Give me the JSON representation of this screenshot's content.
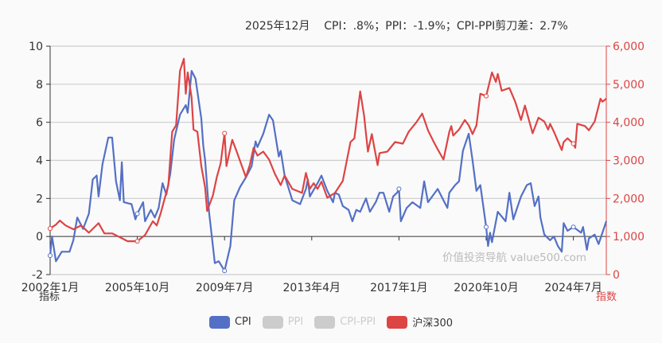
{
  "summary": {
    "text": "2025年12月    CPI：.8%；PPI：-1.9%；CPI-PPI剪刀差：2.7%"
  },
  "watermark": "价值投资导航 value500.com",
  "colors": {
    "cpi": "#5470c6",
    "hs300": "#dd4444",
    "inactive": "#cccccc",
    "grid": "#cccccc"
  },
  "chart_data": {
    "type": "line",
    "x_start": "2002-01",
    "x_end": "2025-12",
    "x_ticks": [
      "2002年1月",
      "2005年10月",
      "2009年7月",
      "2013年4月",
      "2017年1月",
      "2020年10月",
      "2024年7月"
    ],
    "x_tick_dates": [
      "2002-01",
      "2005-10",
      "2009-07",
      "2013-04",
      "2017-01",
      "2020-10",
      "2024-07"
    ],
    "y_left": {
      "name": "指标",
      "min": -2,
      "max": 10,
      "ticks": [
        "-2",
        "0",
        "2",
        "4",
        "6",
        "8",
        "10"
      ]
    },
    "y_right": {
      "name": "指数",
      "min": 0,
      "max": 6000,
      "ticks": [
        "0",
        "1,000",
        "2,000",
        "3,000",
        "4,000",
        "5,000",
        "6,000"
      ]
    },
    "legend": [
      {
        "name": "CPI",
        "active": true,
        "color": "#5470c6"
      },
      {
        "name": "PPI",
        "active": false
      },
      {
        "name": "CPI-PPI",
        "active": false
      },
      {
        "name": "沪深300",
        "active": true,
        "color": "#dd4444"
      }
    ],
    "series": [
      {
        "name": "CPI",
        "axis": "left",
        "points": [
          [
            "2002-01",
            -1.0
          ],
          [
            "2002-02",
            0
          ],
          [
            "2002-04",
            -1.3
          ],
          [
            "2002-07",
            -0.8
          ],
          [
            "2002-11",
            -0.8
          ],
          [
            "2003-01",
            -0.2
          ],
          [
            "2003-03",
            1.0
          ],
          [
            "2003-06",
            0.4
          ],
          [
            "2003-09",
            1.2
          ],
          [
            "2003-11",
            3.0
          ],
          [
            "2004-01",
            3.2
          ],
          [
            "2004-02",
            2.1
          ],
          [
            "2004-04",
            3.8
          ],
          [
            "2004-07",
            5.2
          ],
          [
            "2004-09",
            5.2
          ],
          [
            "2004-11",
            2.9
          ],
          [
            "2005-01",
            1.9
          ],
          [
            "2005-02",
            3.9
          ],
          [
            "2005-03",
            1.8
          ],
          [
            "2005-07",
            1.7
          ],
          [
            "2005-09",
            0.9
          ],
          [
            "2005-10",
            1.2
          ],
          [
            "2006-01",
            1.8
          ],
          [
            "2006-02",
            0.8
          ],
          [
            "2006-05",
            1.4
          ],
          [
            "2006-07",
            1.0
          ],
          [
            "2006-09",
            1.5
          ],
          [
            "2006-11",
            2.8
          ],
          [
            "2007-01",
            2.2
          ],
          [
            "2007-03",
            3.3
          ],
          [
            "2007-05",
            5.1
          ],
          [
            "2007-08",
            6.4
          ],
          [
            "2007-11",
            6.9
          ],
          [
            "2007-12",
            6.5
          ],
          [
            "2008-02",
            8.7
          ],
          [
            "2008-04",
            8.3
          ],
          [
            "2008-07",
            6.2
          ],
          [
            "2008-08",
            4.8
          ],
          [
            "2008-09",
            4.0
          ],
          [
            "2008-11",
            1.3
          ],
          [
            "2009-02",
            -1.4
          ],
          [
            "2009-04",
            -1.3
          ],
          [
            "2009-07",
            -1.8
          ],
          [
            "2009-10",
            -0.5
          ],
          [
            "2009-12",
            1.9
          ],
          [
            "2010-03",
            2.6
          ],
          [
            "2010-06",
            3.1
          ],
          [
            "2010-09",
            3.7
          ],
          [
            "2010-11",
            5.0
          ],
          [
            "2010-12",
            4.7
          ],
          [
            "2011-03",
            5.4
          ],
          [
            "2011-06",
            6.4
          ],
          [
            "2011-08",
            6.1
          ],
          [
            "2011-11",
            4.2
          ],
          [
            "2011-12",
            4.5
          ],
          [
            "2012-02",
            3.2
          ],
          [
            "2012-06",
            1.9
          ],
          [
            "2012-10",
            1.7
          ],
          [
            "2013-01",
            2.5
          ],
          [
            "2013-02",
            3.0
          ],
          [
            "2013-03",
            2.1
          ],
          [
            "2013-07",
            2.8
          ],
          [
            "2013-09",
            3.2
          ],
          [
            "2013-12",
            2.4
          ],
          [
            "2014-03",
            1.8
          ],
          [
            "2014-04",
            2.3
          ],
          [
            "2014-06",
            2.2
          ],
          [
            "2014-08",
            1.6
          ],
          [
            "2014-11",
            1.4
          ],
          [
            "2015-01",
            0.8
          ],
          [
            "2015-03",
            1.4
          ],
          [
            "2015-05",
            1.3
          ],
          [
            "2015-08",
            2.0
          ],
          [
            "2015-10",
            1.3
          ],
          [
            "2016-01",
            1.8
          ],
          [
            "2016-03",
            2.3
          ],
          [
            "2016-05",
            2.3
          ],
          [
            "2016-08",
            1.3
          ],
          [
            "2016-10",
            2.1
          ],
          [
            "2016-12",
            2.3
          ],
          [
            "2017-01",
            2.5
          ],
          [
            "2017-02",
            0.8
          ],
          [
            "2017-05",
            1.5
          ],
          [
            "2017-08",
            1.8
          ],
          [
            "2017-12",
            1.5
          ],
          [
            "2018-02",
            2.9
          ],
          [
            "2018-04",
            1.8
          ],
          [
            "2018-09",
            2.5
          ],
          [
            "2019-02",
            1.5
          ],
          [
            "2019-03",
            2.3
          ],
          [
            "2019-06",
            2.7
          ],
          [
            "2019-08",
            2.9
          ],
          [
            "2019-10",
            4.5
          ],
          [
            "2020-01",
            5.4
          ],
          [
            "2020-03",
            4.0
          ],
          [
            "2020-05",
            2.4
          ],
          [
            "2020-07",
            2.7
          ],
          [
            "2020-10",
            0.5
          ],
          [
            "2020-11",
            -0.5
          ],
          [
            "2020-12",
            0.2
          ],
          [
            "2021-01",
            -0.3
          ],
          [
            "2021-04",
            1.3
          ],
          [
            "2021-08",
            0.8
          ],
          [
            "2021-10",
            2.3
          ],
          [
            "2021-12",
            0.9
          ],
          [
            "2022-04",
            2.1
          ],
          [
            "2022-07",
            2.7
          ],
          [
            "2022-09",
            2.8
          ],
          [
            "2022-11",
            1.6
          ],
          [
            "2023-01",
            2.1
          ],
          [
            "2023-02",
            1.0
          ],
          [
            "2023-04",
            0.1
          ],
          [
            "2023-07",
            -0.2
          ],
          [
            "2023-09",
            0
          ],
          [
            "2023-11",
            -0.5
          ],
          [
            "2024-01",
            -0.8
          ],
          [
            "2024-02",
            0.7
          ],
          [
            "2024-04",
            0.3
          ],
          [
            "2024-07",
            0.5
          ],
          [
            "2024-11",
            0.2
          ],
          [
            "2024-12",
            0.5
          ],
          [
            "2025-02",
            -0.7
          ],
          [
            "2025-03",
            -0.1
          ],
          [
            "2025-06",
            0.1
          ],
          [
            "2025-08",
            -0.4
          ],
          [
            "2025-09",
            -0.1
          ],
          [
            "2025-12",
            0.8
          ]
        ]
      },
      {
        "name": "沪深300",
        "axis": "right",
        "points": [
          [
            "2002-01",
            1210
          ],
          [
            "2002-04",
            1310
          ],
          [
            "2002-06",
            1420
          ],
          [
            "2002-09",
            1290
          ],
          [
            "2003-01",
            1190
          ],
          [
            "2003-05",
            1290
          ],
          [
            "2003-09",
            1100
          ],
          [
            "2004-02",
            1350
          ],
          [
            "2004-05",
            1080
          ],
          [
            "2004-09",
            1080
          ],
          [
            "2005-01",
            980
          ],
          [
            "2005-05",
            875
          ],
          [
            "2005-10",
            875
          ],
          [
            "2006-02",
            1040
          ],
          [
            "2006-06",
            1400
          ],
          [
            "2006-08",
            1290
          ],
          [
            "2006-10",
            1600
          ],
          [
            "2007-02",
            2350
          ],
          [
            "2007-04",
            3750
          ],
          [
            "2007-06",
            3920
          ],
          [
            "2007-08",
            5350
          ],
          [
            "2007-10",
            5670
          ],
          [
            "2007-11",
            4750
          ],
          [
            "2007-12",
            5310
          ],
          [
            "2008-02",
            4650
          ],
          [
            "2008-03",
            3810
          ],
          [
            "2008-05",
            3750
          ],
          [
            "2008-07",
            2850
          ],
          [
            "2008-09",
            2290
          ],
          [
            "2008-10",
            1670
          ],
          [
            "2009-01",
            2080
          ],
          [
            "2009-03",
            2560
          ],
          [
            "2009-05",
            2920
          ],
          [
            "2009-07",
            3710
          ],
          [
            "2009-08",
            2850
          ],
          [
            "2009-11",
            3540
          ],
          [
            "2010-01",
            3270
          ],
          [
            "2010-06",
            2560
          ],
          [
            "2010-08",
            2875
          ],
          [
            "2010-10",
            3330
          ],
          [
            "2010-12",
            3125
          ],
          [
            "2011-03",
            3230
          ],
          [
            "2011-06",
            3020
          ],
          [
            "2011-09",
            2645
          ],
          [
            "2011-12",
            2350
          ],
          [
            "2012-02",
            2600
          ],
          [
            "2012-06",
            2250
          ],
          [
            "2012-11",
            2145
          ],
          [
            "2013-01",
            2670
          ],
          [
            "2013-03",
            2250
          ],
          [
            "2013-05",
            2400
          ],
          [
            "2013-07",
            2250
          ],
          [
            "2013-09",
            2440
          ],
          [
            "2013-12",
            2020
          ],
          [
            "2014-04",
            2145
          ],
          [
            "2014-08",
            2460
          ],
          [
            "2014-12",
            3480
          ],
          [
            "2015-02",
            3580
          ],
          [
            "2015-05",
            4810
          ],
          [
            "2015-07",
            4170
          ],
          [
            "2015-09",
            3230
          ],
          [
            "2015-11",
            3690
          ],
          [
            "2016-02",
            2875
          ],
          [
            "2016-03",
            3190
          ],
          [
            "2016-07",
            3230
          ],
          [
            "2016-11",
            3480
          ],
          [
            "2017-03",
            3440
          ],
          [
            "2017-06",
            3750
          ],
          [
            "2017-10",
            4000
          ],
          [
            "2018-01",
            4230
          ],
          [
            "2018-04",
            3790
          ],
          [
            "2018-07",
            3480
          ],
          [
            "2018-09",
            3290
          ],
          [
            "2018-12",
            3020
          ],
          [
            "2019-03",
            3750
          ],
          [
            "2019-04",
            3900
          ],
          [
            "2019-05",
            3650
          ],
          [
            "2019-08",
            3810
          ],
          [
            "2019-11",
            4060
          ],
          [
            "2020-01",
            3920
          ],
          [
            "2020-03",
            3690
          ],
          [
            "2020-05",
            3920
          ],
          [
            "2020-07",
            4750
          ],
          [
            "2020-10",
            4690
          ],
          [
            "2021-01",
            5310
          ],
          [
            "2021-03",
            5060
          ],
          [
            "2021-04",
            5270
          ],
          [
            "2021-06",
            4830
          ],
          [
            "2021-10",
            4900
          ],
          [
            "2022-01",
            4540
          ],
          [
            "2022-04",
            4060
          ],
          [
            "2022-06",
            4440
          ],
          [
            "2022-10",
            3710
          ],
          [
            "2023-01",
            4120
          ],
          [
            "2023-04",
            4020
          ],
          [
            "2023-06",
            3810
          ],
          [
            "2023-07",
            3960
          ],
          [
            "2023-09",
            3750
          ],
          [
            "2024-01",
            3270
          ],
          [
            "2024-02",
            3480
          ],
          [
            "2024-04",
            3580
          ],
          [
            "2024-07",
            3440
          ],
          [
            "2024-08",
            3330
          ],
          [
            "2024-09",
            3960
          ],
          [
            "2025-01",
            3900
          ],
          [
            "2025-03",
            3790
          ],
          [
            "2025-06",
            4020
          ],
          [
            "2025-09",
            4620
          ],
          [
            "2025-10",
            4540
          ],
          [
            "2025-12",
            4620
          ]
        ]
      }
    ]
  }
}
